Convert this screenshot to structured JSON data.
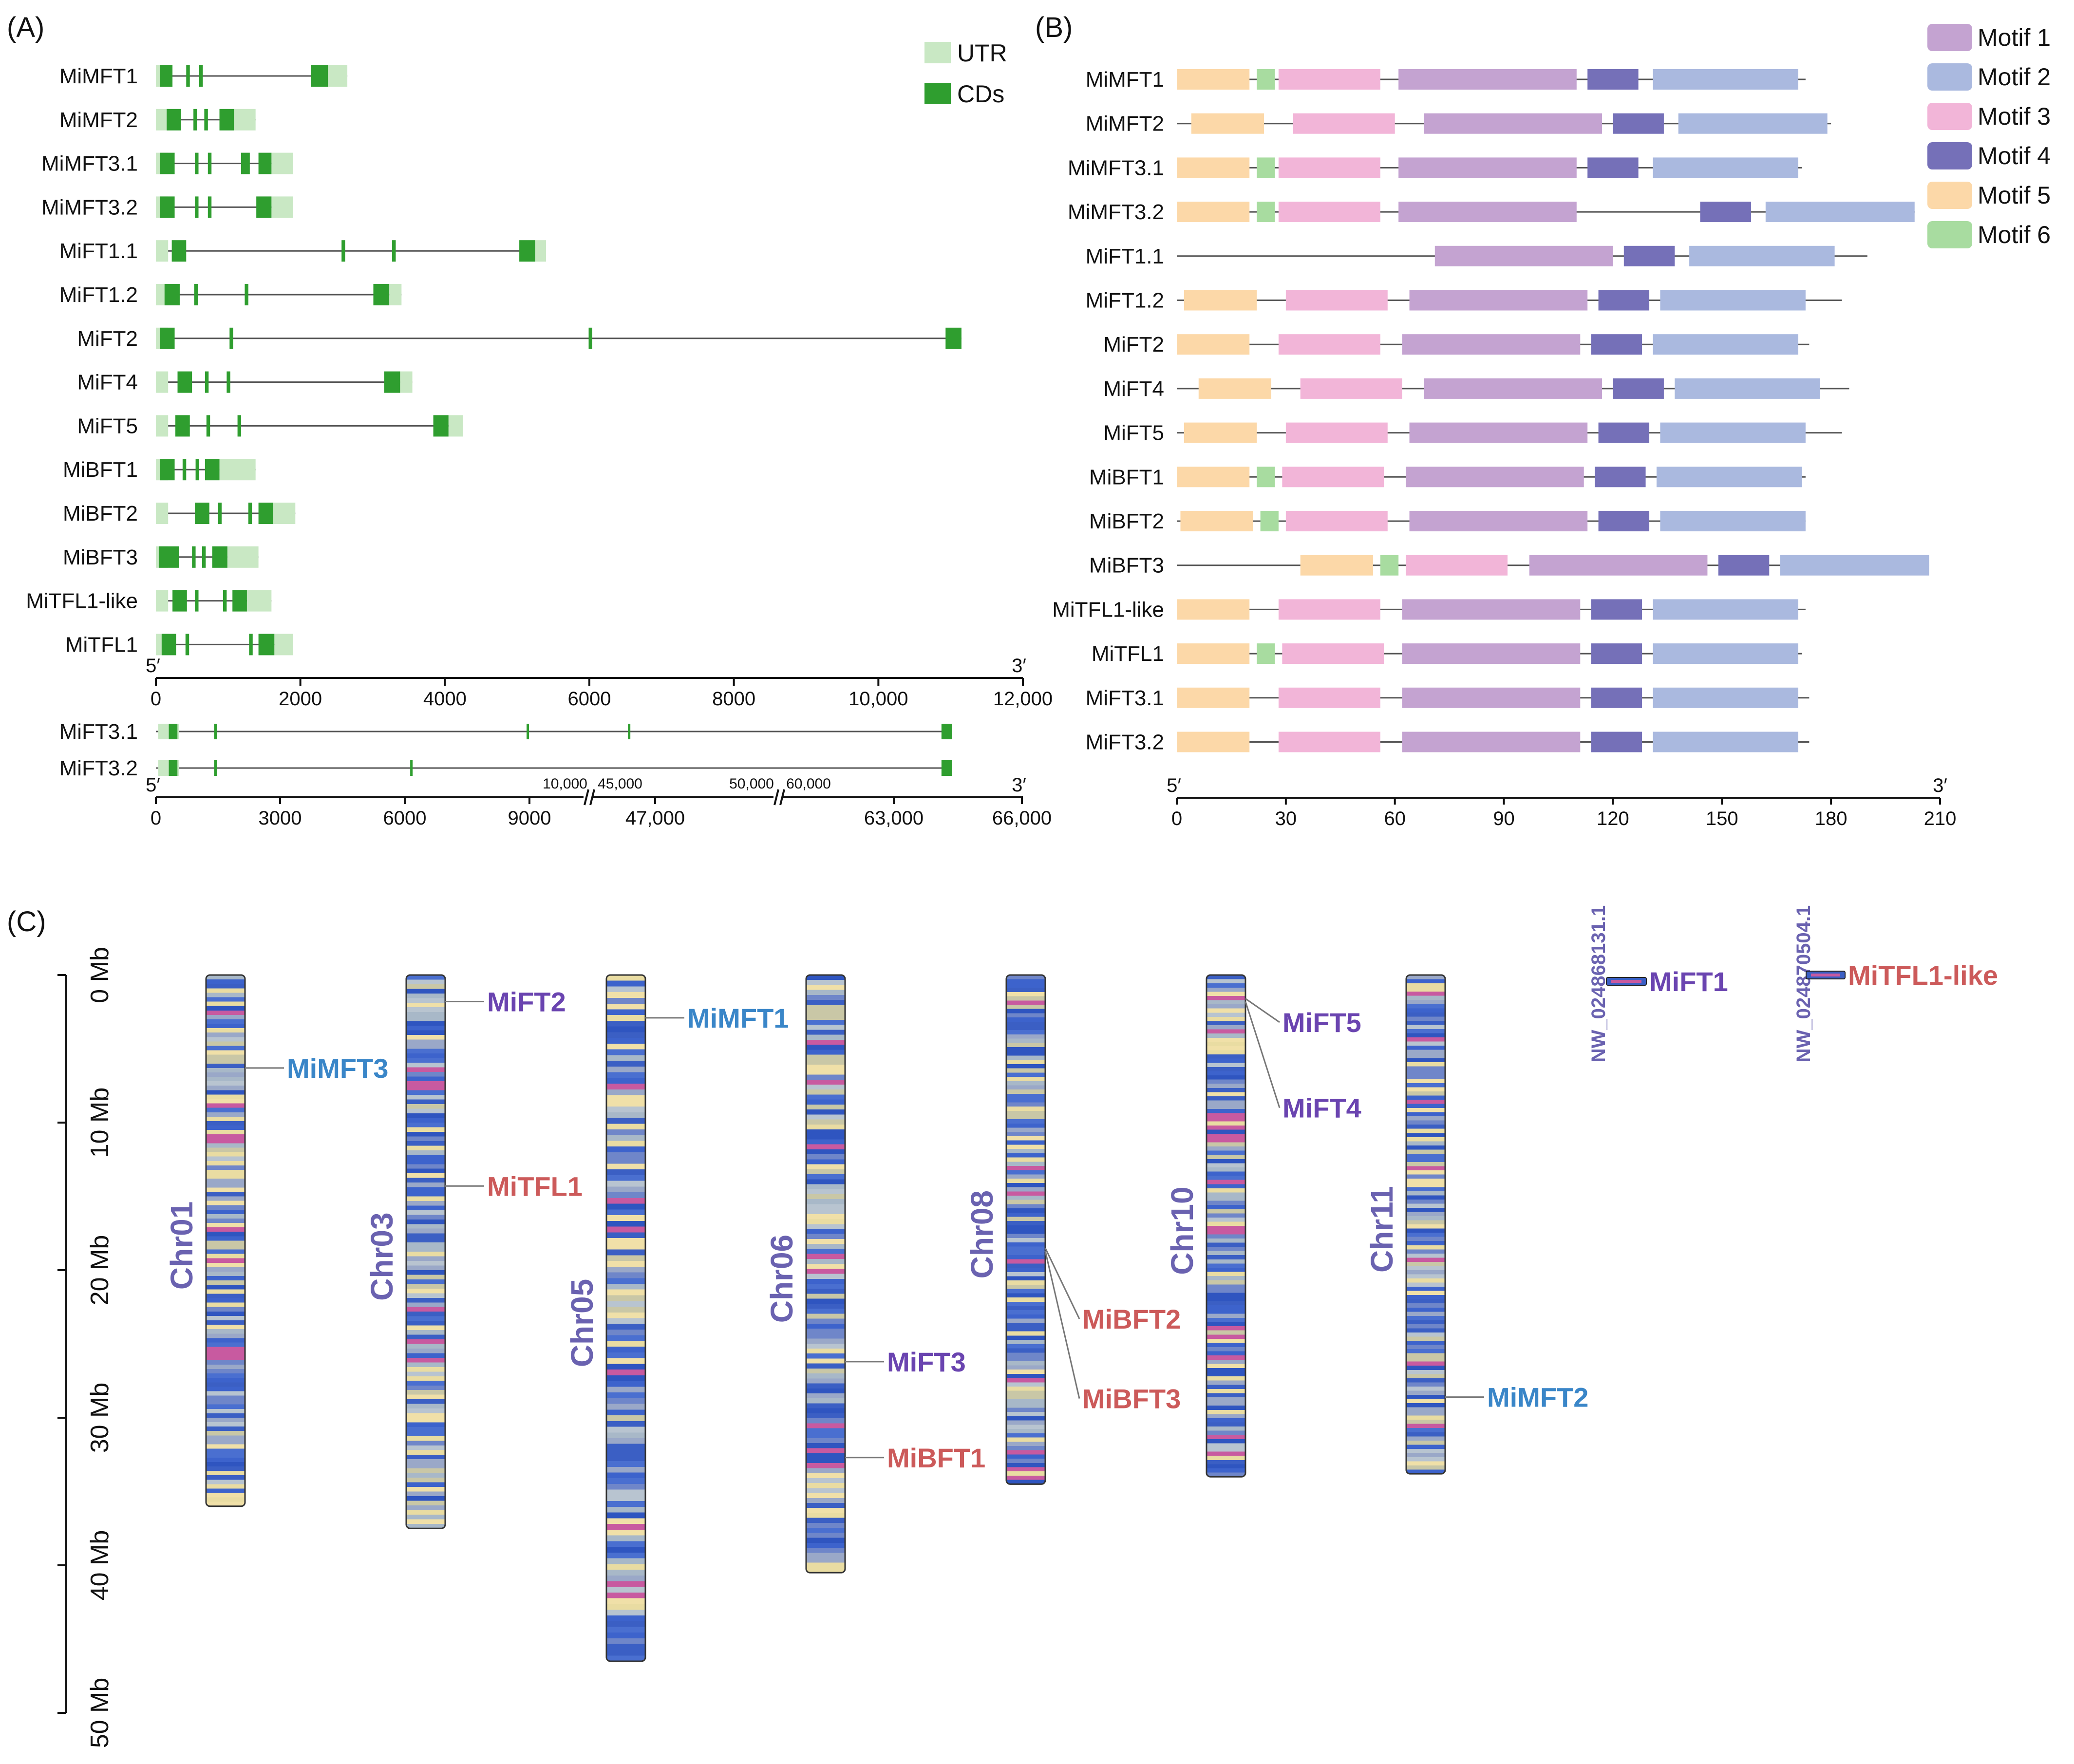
{
  "panels": {
    "a": "(A)",
    "b": "(B)",
    "c": "(C)"
  },
  "panel_a": {
    "legend": [
      {
        "label": "UTR",
        "color": "#c9e8c4"
      },
      {
        "label": "CDs",
        "color": "#2f9e2f"
      }
    ],
    "genes": [
      {
        "name": "MiMFT1",
        "utr": [
          0,
          2650
        ],
        "cds": [
          [
            60,
            230
          ],
          [
            420,
            470
          ],
          [
            600,
            650
          ],
          [
            2150,
            2380
          ]
        ]
      },
      {
        "name": "MiMFT2",
        "utr": [
          0,
          1380
        ],
        "cds": [
          [
            150,
            350
          ],
          [
            520,
            570
          ],
          [
            670,
            720
          ],
          [
            880,
            1080
          ]
        ]
      },
      {
        "name": "MiMFT3.1",
        "utr": [
          0,
          1900
        ],
        "cds": [
          [
            60,
            260
          ],
          [
            540,
            590
          ],
          [
            720,
            770
          ],
          [
            1180,
            1300
          ],
          [
            1420,
            1600
          ]
        ]
      },
      {
        "name": "MiMFT3.2",
        "utr": [
          0,
          1900
        ],
        "cds": [
          [
            60,
            260
          ],
          [
            540,
            590
          ],
          [
            720,
            770
          ],
          [
            1390,
            1600
          ]
        ]
      },
      {
        "name": "MiFT1.1",
        "utr": [
          0,
          5400
        ],
        "cds": [
          [
            220,
            420
          ],
          [
            2570,
            2620
          ],
          [
            3270,
            3320
          ],
          [
            5030,
            5250
          ]
        ]
      },
      {
        "name": "MiFT1.2",
        "utr": [
          0,
          3400
        ],
        "cds": [
          [
            120,
            330
          ],
          [
            530,
            580
          ],
          [
            1230,
            1280
          ],
          [
            3010,
            3230
          ]
        ]
      },
      {
        "name": "MiFT2",
        "utr": [
          0,
          11150
        ],
        "cds": [
          [
            60,
            260
          ],
          [
            1020,
            1070
          ],
          [
            5990,
            6040
          ],
          [
            10930,
            11150
          ]
        ]
      },
      {
        "name": "MiFT4",
        "utr": [
          0,
          3550
        ],
        "cds": [
          [
            300,
            500
          ],
          [
            680,
            730
          ],
          [
            980,
            1030
          ],
          [
            3160,
            3380
          ]
        ]
      },
      {
        "name": "MiFT5",
        "utr": [
          0,
          4250
        ],
        "cds": [
          [
            270,
            470
          ],
          [
            700,
            750
          ],
          [
            1130,
            1180
          ],
          [
            3840,
            4050
          ]
        ]
      },
      {
        "name": "MiBFT1",
        "utr": [
          0,
          1380
        ],
        "cds": [
          [
            60,
            260
          ],
          [
            370,
            420
          ],
          [
            550,
            600
          ],
          [
            680,
            880
          ]
        ]
      },
      {
        "name": "MiBFT2",
        "utr": [
          0,
          1930
        ],
        "cds": [
          [
            540,
            740
          ],
          [
            860,
            910
          ],
          [
            1280,
            1330
          ],
          [
            1420,
            1620
          ]
        ]
      },
      {
        "name": "MiBFT3",
        "utr": [
          0,
          1420
        ],
        "cds": [
          [
            40,
            320
          ],
          [
            500,
            550
          ],
          [
            640,
            690
          ],
          [
            780,
            990
          ]
        ]
      },
      {
        "name": "MiTFL1-like",
        "utr": [
          0,
          1600
        ],
        "cds": [
          [
            230,
            430
          ],
          [
            540,
            590
          ],
          [
            930,
            980
          ],
          [
            1060,
            1260
          ]
        ]
      },
      {
        "name": "MiTFL1",
        "utr": [
          0,
          1900
        ],
        "cds": [
          [
            80,
            280
          ],
          [
            410,
            460
          ],
          [
            1290,
            1340
          ],
          [
            1420,
            1640
          ]
        ]
      }
    ],
    "axis1": {
      "min": 0,
      "max": 12000,
      "ticks": [
        "0",
        "2000",
        "4000",
        "6000",
        "8000",
        "10,000",
        "12,000"
      ],
      "five": "5′",
      "three": "3′"
    },
    "ft3_genes": [
      {
        "name": "MiFT3.1",
        "utr": [
          0,
          66200
        ],
        "cds": [
          [
            300,
            500
          ],
          [
            1350,
            1420
          ],
          [
            8600,
            8650
          ],
          [
            45900,
            45950
          ],
          [
            65800,
            66200
          ]
        ]
      },
      {
        "name": "MiFT3.2",
        "utr": [
          0,
          66200
        ],
        "cds": [
          [
            300,
            500
          ],
          [
            1350,
            1420
          ],
          [
            5900,
            5950
          ],
          [
            65800,
            66200
          ]
        ]
      }
    ],
    "axis2": {
      "ticks": [
        "0",
        "3000",
        "6000",
        "9000",
        "47,000",
        "63,000",
        "66,000"
      ],
      "breaks": [
        "10,000",
        "45,000",
        "50,000",
        "60,000"
      ],
      "five": "5′",
      "three": "3′"
    }
  },
  "panel_b": {
    "legend": [
      {
        "label": "Motif 1",
        "color": "#c4a3d1"
      },
      {
        "label": "Motif 2",
        "color": "#aab9df"
      },
      {
        "label": "Motif 3",
        "color": "#f2b5d8"
      },
      {
        "label": "Motif 4",
        "color": "#7570b8"
      },
      {
        "label": "Motif 5",
        "color": "#fcd8a8"
      },
      {
        "label": "Motif 6",
        "color": "#a8dca0"
      }
    ],
    "proteins": [
      {
        "name": "MiMFT1",
        "len": 173,
        "motifs": [
          [
            5,
            0,
            20
          ],
          [
            6,
            22,
            27
          ],
          [
            3,
            28,
            56
          ],
          [
            1,
            61,
            110
          ],
          [
            4,
            113,
            127
          ],
          [
            2,
            131,
            171
          ]
        ]
      },
      {
        "name": "MiMFT2",
        "len": 180,
        "motifs": [
          [
            5,
            4,
            24
          ],
          [
            3,
            32,
            60
          ],
          [
            1,
            68,
            117
          ],
          [
            4,
            120,
            134
          ],
          [
            2,
            138,
            179
          ]
        ]
      },
      {
        "name": "MiMFT3.1",
        "len": 172,
        "motifs": [
          [
            5,
            0,
            20
          ],
          [
            6,
            22,
            27
          ],
          [
            3,
            28,
            56
          ],
          [
            1,
            61,
            110
          ],
          [
            4,
            113,
            127
          ],
          [
            2,
            131,
            171
          ]
        ]
      },
      {
        "name": "MiMFT3.2",
        "len": 203,
        "motifs": [
          [
            5,
            0,
            20
          ],
          [
            6,
            22,
            27
          ],
          [
            3,
            28,
            56
          ],
          [
            1,
            61,
            110
          ],
          [
            4,
            144,
            158
          ],
          [
            2,
            162,
            203
          ]
        ]
      },
      {
        "name": "MiFT1.1",
        "len": 190,
        "motifs": [
          [
            1,
            71,
            120
          ],
          [
            4,
            123,
            137
          ],
          [
            2,
            141,
            181
          ]
        ]
      },
      {
        "name": "MiFT1.2",
        "len": 183,
        "motifs": [
          [
            5,
            2,
            22
          ],
          [
            3,
            30,
            58
          ],
          [
            1,
            64,
            113
          ],
          [
            4,
            116,
            130
          ],
          [
            2,
            133,
            173
          ]
        ]
      },
      {
        "name": "MiFT2",
        "len": 174,
        "motifs": [
          [
            5,
            0,
            20
          ],
          [
            3,
            28,
            56
          ],
          [
            1,
            62,
            111
          ],
          [
            4,
            114,
            128
          ],
          [
            2,
            131,
            171
          ]
        ]
      },
      {
        "name": "MiFT4",
        "len": 185,
        "motifs": [
          [
            5,
            6,
            26
          ],
          [
            3,
            34,
            62
          ],
          [
            1,
            68,
            117
          ],
          [
            4,
            120,
            134
          ],
          [
            2,
            137,
            177
          ]
        ]
      },
      {
        "name": "MiFT5",
        "len": 183,
        "motifs": [
          [
            5,
            2,
            22
          ],
          [
            3,
            30,
            58
          ],
          [
            1,
            64,
            113
          ],
          [
            4,
            116,
            130
          ],
          [
            2,
            133,
            173
          ]
        ]
      },
      {
        "name": "MiBFT1",
        "len": 173,
        "motifs": [
          [
            5,
            0,
            20
          ],
          [
            6,
            22,
            27
          ],
          [
            3,
            29,
            57
          ],
          [
            1,
            63,
            112
          ],
          [
            4,
            115,
            129
          ],
          [
            2,
            132,
            172
          ]
        ]
      },
      {
        "name": "MiBFT2",
        "len": 173,
        "motifs": [
          [
            5,
            1,
            21
          ],
          [
            6,
            23,
            28
          ],
          [
            3,
            30,
            58
          ],
          [
            1,
            64,
            113
          ],
          [
            4,
            116,
            130
          ],
          [
            2,
            133,
            173
          ]
        ]
      },
      {
        "name": "MiBFT3",
        "len": 207,
        "motifs": [
          [
            5,
            34,
            54
          ],
          [
            6,
            56,
            61
          ],
          [
            3,
            63,
            91
          ],
          [
            1,
            97,
            146
          ],
          [
            4,
            149,
            163
          ],
          [
            2,
            166,
            207
          ]
        ]
      },
      {
        "name": "MiTFL1-like",
        "len": 173,
        "motifs": [
          [
            5,
            0,
            20
          ],
          [
            3,
            28,
            56
          ],
          [
            1,
            62,
            111
          ],
          [
            4,
            114,
            128
          ],
          [
            2,
            131,
            171
          ]
        ]
      },
      {
        "name": "MiTFL1",
        "len": 172,
        "motifs": [
          [
            5,
            0,
            20
          ],
          [
            6,
            22,
            27
          ],
          [
            3,
            29,
            57
          ],
          [
            1,
            62,
            111
          ],
          [
            4,
            114,
            128
          ],
          [
            2,
            131,
            171
          ]
        ]
      },
      {
        "name": "MiFT3.1",
        "len": 174,
        "motifs": [
          [
            5,
            0,
            20
          ],
          [
            3,
            28,
            56
          ],
          [
            1,
            62,
            111
          ],
          [
            4,
            114,
            128
          ],
          [
            2,
            131,
            171
          ]
        ]
      },
      {
        "name": "MiFT3.2",
        "len": 174,
        "motifs": [
          [
            5,
            0,
            20
          ],
          [
            3,
            28,
            56
          ],
          [
            1,
            62,
            111
          ],
          [
            4,
            114,
            128
          ],
          [
            2,
            131,
            171
          ]
        ]
      }
    ],
    "axis": {
      "min": 0,
      "max": 210,
      "ticks": [
        "0",
        "30",
        "60",
        "90",
        "120",
        "150",
        "180",
        "210"
      ],
      "five": "5′",
      "three": "3′"
    }
  },
  "panel_c": {
    "scale": {
      "max_mb": 50,
      "ticks": [
        "0 Mb",
        "10 Mb",
        "20 Mb",
        "30 Mb",
        "40 Mb",
        "50 Mb"
      ]
    },
    "chromosomes": [
      {
        "name": "Chr01",
        "len_mb": 36,
        "genes": [
          {
            "name": "MiMFT3",
            "pos_mb": 6.3,
            "label_mb": 6.3,
            "color": "#3a86c8"
          }
        ]
      },
      {
        "name": "Chr03",
        "len_mb": 37.5,
        "genes": [
          {
            "name": "MiFT2",
            "pos_mb": 1.8,
            "label_mb": 1.8,
            "color": "#6a44b0"
          },
          {
            "name": "MiTFL1",
            "pos_mb": 14.3,
            "label_mb": 14.3,
            "color": "#cc5a5a"
          }
        ]
      },
      {
        "name": "Chr05",
        "len_mb": 46.5,
        "genes": [
          {
            "name": "MiMFT1",
            "pos_mb": 2.9,
            "label_mb": 2.9,
            "color": "#3a86c8"
          }
        ]
      },
      {
        "name": "Chr06",
        "len_mb": 40.5,
        "genes": [
          {
            "name": "MiFT3",
            "pos_mb": 26.2,
            "label_mb": 26.2,
            "color": "#6a44b0"
          },
          {
            "name": "MiBFT1",
            "pos_mb": 32.7,
            "label_mb": 32.7,
            "color": "#cc5a5a"
          }
        ]
      },
      {
        "name": "Chr08",
        "len_mb": 34.5,
        "genes": [
          {
            "name": "MiBFT2",
            "pos_mb": 18.5,
            "label_mb": 23.3,
            "color": "#cc5a5a"
          },
          {
            "name": "MiBFT3",
            "pos_mb": 18.7,
            "label_mb": 28.7,
            "color": "#cc5a5a"
          }
        ]
      },
      {
        "name": "Chr10",
        "len_mb": 34,
        "genes": [
          {
            "name": "MiFT5",
            "pos_mb": 1.6,
            "label_mb": 3.2,
            "color": "#6a44b0"
          },
          {
            "name": "MiFT4",
            "pos_mb": 1.8,
            "label_mb": 9.0,
            "color": "#6a44b0"
          }
        ]
      },
      {
        "name": "Chr11",
        "len_mb": 33.8,
        "genes": [
          {
            "name": "MiMFT2",
            "pos_mb": 28.6,
            "label_mb": 28.6,
            "color": "#3a86c8"
          }
        ]
      }
    ],
    "scaffolds": [
      {
        "name": "NW_024868131.1",
        "gene": "MiFT1",
        "color": "#6a44b0"
      },
      {
        "name": "NW_024870504.1",
        "gene": "MiTFL1-like",
        "color": "#cc5a5a"
      }
    ]
  }
}
